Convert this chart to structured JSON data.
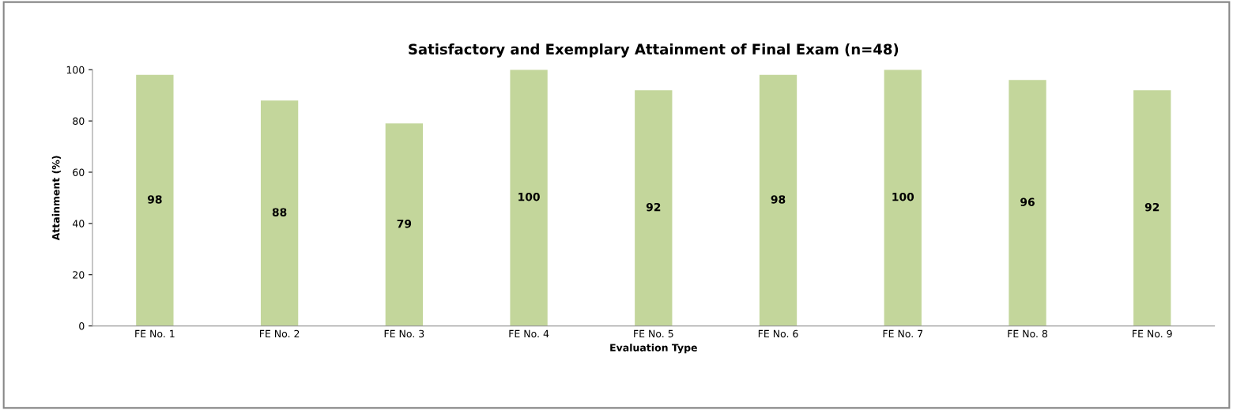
{
  "chart_data": {
    "type": "bar",
    "title": "Satisfactory and Exemplary Attainment of Final Exam (n=48)",
    "xlabel": "Evaluation Type",
    "ylabel": "Attainment (%)",
    "categories": [
      "FE No. 1",
      "FE No. 2",
      "FE No. 3",
      "FE No. 4",
      "FE No. 5",
      "FE No. 6",
      "FE No. 7",
      "FE No. 8",
      "FE No. 9"
    ],
    "values": [
      98,
      88,
      79,
      100,
      92,
      98,
      100,
      96,
      92
    ],
    "color": "#c3d69b",
    "ylim": [
      0,
      100
    ],
    "yticks": [
      0,
      20,
      40,
      60,
      80,
      100
    ],
    "grid": false,
    "data_labels": true
  }
}
